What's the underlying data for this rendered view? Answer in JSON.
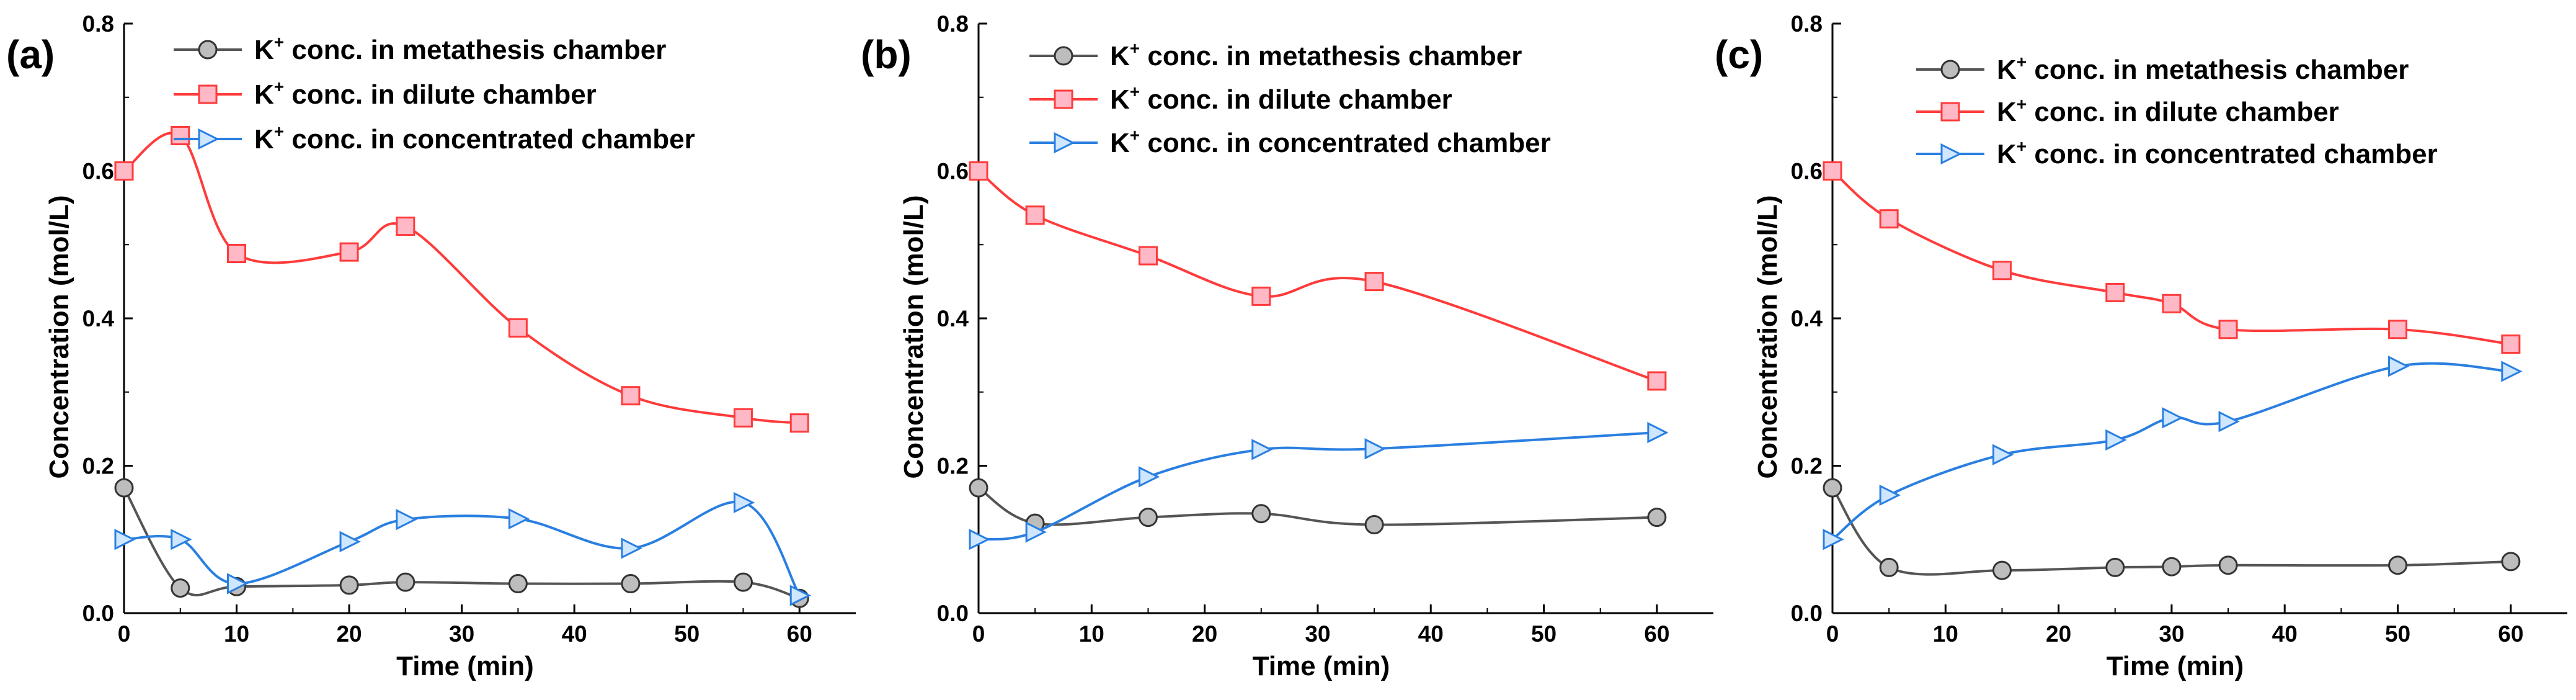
{
  "colors": {
    "metathesis_line": "#555555",
    "metathesis_marker_fill": "#bdbdbd",
    "metathesis_marker_edge": "#333333",
    "dilute_line": "#ff3b3b",
    "dilute_marker_fill": "#ffb8c6",
    "dilute_marker_edge": "#ff3b3b",
    "concentrated_line": "#2a7fe0",
    "concentrated_marker_fill": "#cfe6ff",
    "concentrated_marker_edge": "#2a7fe0"
  },
  "chart_data": [
    {
      "type": "line",
      "panel_label": "(a)",
      "title": "",
      "xlabel": "Time (min)",
      "ylabel": "Concentration (mol/L)",
      "xlim": [
        0,
        65
      ],
      "ylim": [
        0,
        0.8
      ],
      "xticks": [
        0,
        10,
        20,
        30,
        40,
        50,
        60
      ],
      "yticks": [
        0.0,
        0.2,
        0.4,
        0.6,
        0.8
      ],
      "ytick_labels": [
        "0.0",
        "0.2",
        "0.4",
        "0.6",
        "0.8"
      ],
      "legend_position": "top-right",
      "series": [
        {
          "key": "metathesis",
          "name_main": "K",
          "name_sup": "+",
          "name_rest": " conc. in metathesis chamber",
          "marker": "circle",
          "x": [
            0,
            5,
            10,
            20,
            25,
            35,
            45,
            55,
            60
          ],
          "y": [
            0.17,
            0.034,
            0.036,
            0.038,
            0.042,
            0.04,
            0.04,
            0.042,
            0.02
          ]
        },
        {
          "key": "dilute",
          "name_main": "K",
          "name_sup": "+",
          "name_rest": " conc. in dilute chamber",
          "marker": "square",
          "x": [
            0,
            5,
            10,
            20,
            25,
            35,
            45,
            55,
            60
          ],
          "y": [
            0.6,
            0.648,
            0.488,
            0.49,
            0.525,
            0.387,
            0.295,
            0.265,
            0.258
          ]
        },
        {
          "key": "concentrated",
          "name_main": "K",
          "name_sup": "+",
          "name_rest": " conc. in concentrated chamber",
          "marker": "triangle-right",
          "x": [
            0,
            5,
            10,
            20,
            25,
            35,
            45,
            55,
            60
          ],
          "y": [
            0.1,
            0.1,
            0.04,
            0.097,
            0.127,
            0.128,
            0.088,
            0.15,
            0.024
          ]
        }
      ]
    },
    {
      "type": "line",
      "panel_label": "(b)",
      "title": "",
      "xlabel": "Time (min)",
      "ylabel": "Concentration (mol/L)",
      "xlim": [
        0,
        65
      ],
      "ylim": [
        0,
        0.8
      ],
      "xticks": [
        0,
        10,
        20,
        30,
        40,
        50,
        60
      ],
      "yticks": [
        0.0,
        0.2,
        0.4,
        0.6,
        0.8
      ],
      "ytick_labels": [
        "0.0",
        "0.2",
        "0.4",
        "0.6",
        "0.8"
      ],
      "legend_position": "top-right",
      "series": [
        {
          "key": "metathesis",
          "name_main": "K",
          "name_sup": "+",
          "name_rest": " conc. in metathesis chamber",
          "marker": "circle",
          "x": [
            0,
            5,
            15,
            25,
            35,
            60
          ],
          "y": [
            0.17,
            0.122,
            0.13,
            0.135,
            0.12,
            0.13
          ]
        },
        {
          "key": "dilute",
          "name_main": "K",
          "name_sup": "+",
          "name_rest": " conc. in dilute chamber",
          "marker": "square",
          "x": [
            0,
            5,
            15,
            25,
            35,
            60
          ],
          "y": [
            0.6,
            0.54,
            0.485,
            0.43,
            0.45,
            0.315
          ]
        },
        {
          "key": "concentrated",
          "name_main": "K",
          "name_sup": "+",
          "name_rest": " conc. in concentrated chamber",
          "marker": "triangle-right",
          "x": [
            0,
            5,
            15,
            25,
            35,
            60
          ],
          "y": [
            0.1,
            0.11,
            0.185,
            0.222,
            0.223,
            0.245
          ]
        }
      ]
    },
    {
      "type": "line",
      "panel_label": "(c)",
      "title": "",
      "xlabel": "Time (min)",
      "ylabel": "Concentration (mol/L)",
      "xlim": [
        0,
        65
      ],
      "ylim": [
        0,
        0.8
      ],
      "xticks": [
        0,
        10,
        20,
        30,
        40,
        50,
        60
      ],
      "yticks": [
        0.0,
        0.2,
        0.4,
        0.6,
        0.8
      ],
      "ytick_labels": [
        "0.0",
        "0.2",
        "0.4",
        "0.6",
        "0.8"
      ],
      "legend_position": "top-right",
      "series": [
        {
          "key": "metathesis",
          "name_main": "K",
          "name_sup": "+",
          "name_rest": " conc. in metathesis chamber",
          "marker": "circle",
          "x": [
            0,
            5,
            15,
            25,
            30,
            35,
            50,
            60
          ],
          "y": [
            0.17,
            0.062,
            0.058,
            0.062,
            0.063,
            0.065,
            0.065,
            0.07
          ]
        },
        {
          "key": "dilute",
          "name_main": "K",
          "name_sup": "+",
          "name_rest": " conc. in dilute chamber",
          "marker": "square",
          "x": [
            0,
            5,
            15,
            25,
            30,
            35,
            50,
            60
          ],
          "y": [
            0.6,
            0.535,
            0.465,
            0.435,
            0.42,
            0.385,
            0.385,
            0.365
          ]
        },
        {
          "key": "concentrated",
          "name_main": "K",
          "name_sup": "+",
          "name_rest": " conc. in concentrated chamber",
          "marker": "triangle-right",
          "x": [
            0,
            5,
            15,
            25,
            30,
            35,
            50,
            60
          ],
          "y": [
            0.1,
            0.16,
            0.215,
            0.235,
            0.265,
            0.26,
            0.335,
            0.328
          ]
        }
      ]
    }
  ]
}
